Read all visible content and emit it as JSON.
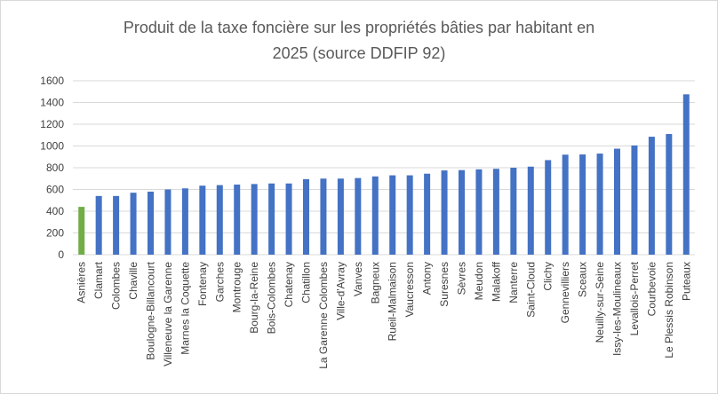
{
  "chart_data": {
    "type": "bar",
    "title_line1": "Produit de la taxe foncière sur les propriétés bâties par habitant en",
    "title_line2": "2025 (source DDFIP 92)",
    "xlabel": "",
    "ylabel": "",
    "ylim": [
      0,
      1600
    ],
    "yticks": [
      "0",
      "200",
      "400",
      "600",
      "800",
      "1000",
      "1200",
      "1400",
      "1600"
    ],
    "grid": true,
    "legend": "none",
    "colors": {
      "default": "#4472c4",
      "highlight": "#70ad47",
      "grid": "#d9d9d9",
      "title": "#595959"
    },
    "highlight_index": 0,
    "categories": [
      "Asnières",
      "Clamart",
      "Colombes",
      "Chaville",
      "Boulogne-Billancourt",
      "Villeneuve la Garenne",
      "Marnes la Coquette",
      "Fontenay",
      "Garches",
      "Montrouge",
      "Bourg-la-Reine",
      "Bois-Colombes",
      "Chatenay",
      "Chatillon",
      "La Garenne Colombes",
      "Ville-d'Avray",
      "Vanves",
      "Bagneux",
      "Rueil-Malmaison",
      "Vaucresson",
      "Antony",
      "Suresnes",
      "Sèvres",
      "Meudon",
      "Malakoff",
      "Nanterre",
      "Saint-Cloud",
      "Clichy",
      "Gennevilliers",
      "Sceaux",
      "Neuilly-sur-Seine",
      "Issy-les-Moulineaux",
      "Levallois-Perret",
      "Courbevoie",
      "Le Plessis Robinson",
      "Puteaux"
    ],
    "values": [
      440,
      540,
      540,
      570,
      580,
      600,
      610,
      635,
      640,
      645,
      650,
      655,
      655,
      695,
      700,
      700,
      705,
      720,
      730,
      730,
      745,
      775,
      778,
      785,
      790,
      800,
      810,
      870,
      920,
      922,
      930,
      975,
      1005,
      1085,
      1110,
      1475
    ]
  }
}
